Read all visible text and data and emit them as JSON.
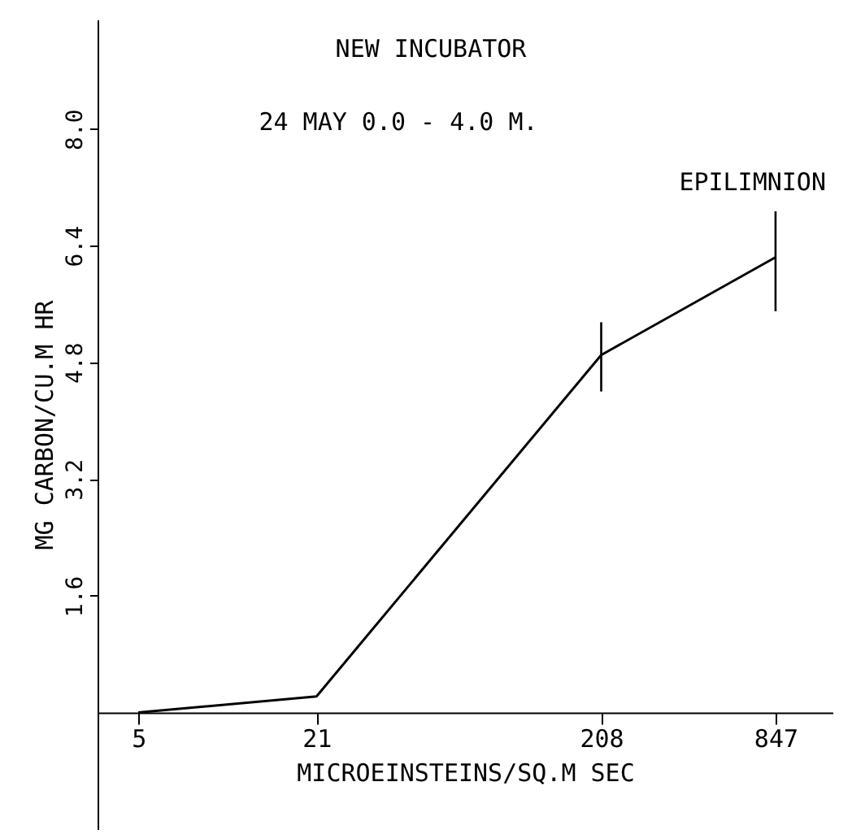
{
  "chart_data": {
    "type": "line",
    "title": "NEW INCUBATOR",
    "subtitle": "24 MAY      0.0 - 4.0 M.",
    "annotations": [
      "EPILIMNION"
    ],
    "xlabel": "MICROEINSTEINS/SQ.M SEC",
    "ylabel": "MG CARBON/CU.M HR",
    "x": [
      5,
      21,
      208,
      847
    ],
    "series": [
      {
        "color": "#000000",
        "values": [
          0.0,
          0.22,
          4.9,
          6.24
        ],
        "errors": [
          null,
          null,
          [
            4.4,
            5.35
          ],
          [
            5.5,
            6.87
          ]
        ]
      }
    ],
    "log": "x",
    "xlim": [
      3.6,
      1340
    ],
    "xticks": [
      5,
      21,
      208,
      847
    ],
    "ylim": [
      -1.6,
      9.5
    ],
    "yticks": [
      1.6,
      3.2,
      4.8,
      6.4,
      {
        "value": 8,
        "label": "8.0"
      }
    ],
    "grid": false,
    "marker": "none",
    "line_style": "solid"
  }
}
